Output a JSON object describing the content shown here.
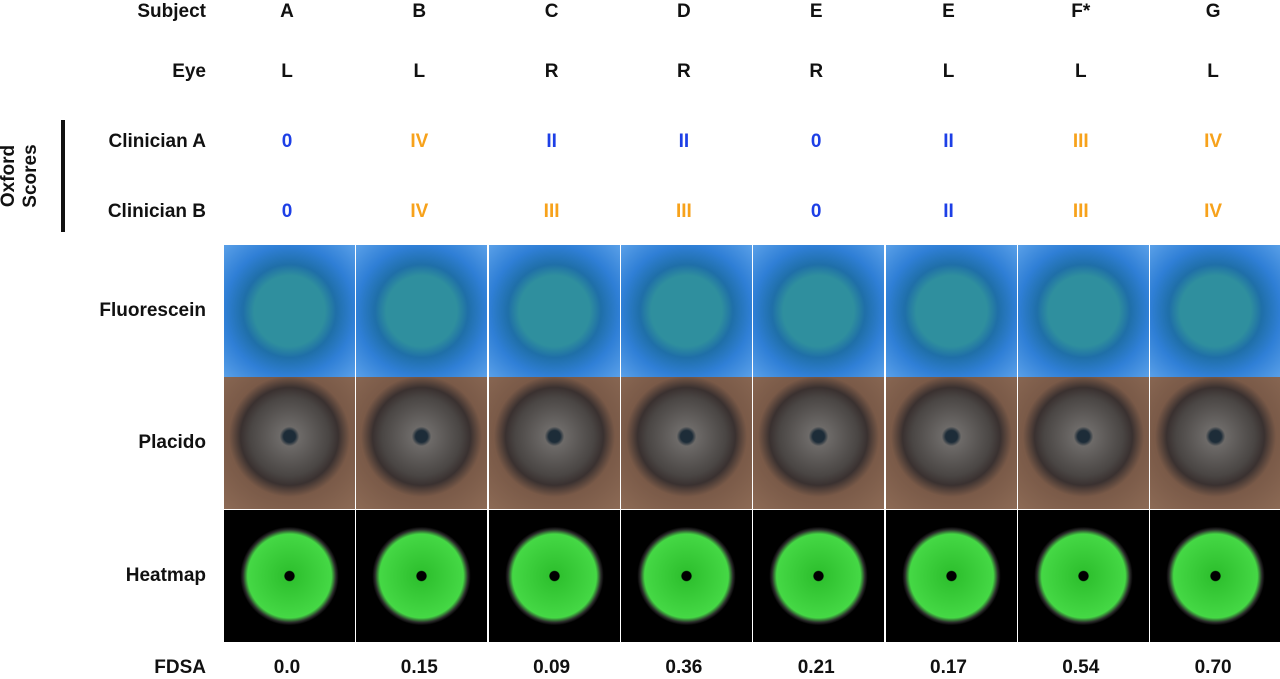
{
  "group_label": [
    "Oxford",
    "Scores"
  ],
  "rows": [
    {
      "label": "Subject",
      "cells": [
        "A",
        "B",
        "C",
        "D",
        "E",
        "E",
        "F*",
        "G"
      ]
    },
    {
      "label": "Eye",
      "cells": [
        "L",
        "L",
        "R",
        "R",
        "R",
        "L",
        "L",
        "L"
      ]
    },
    {
      "label": "Clinician A",
      "cells": [
        "0",
        "IV",
        "II",
        "II",
        "0",
        "II",
        "III",
        "IV"
      ],
      "colors": [
        "#1d3fe6",
        "#f7a21b",
        "#1d3fe6",
        "#1d3fe6",
        "#1d3fe6",
        "#1d3fe6",
        "#f7a21b",
        "#f7a21b"
      ]
    },
    {
      "label": "Clinician B",
      "cells": [
        "0",
        "IV",
        "III",
        "III",
        "0",
        "II",
        "III",
        "IV"
      ],
      "colors": [
        "#1d3fe6",
        "#f7a21b",
        "#f7a21b",
        "#f7a21b",
        "#1d3fe6",
        "#1d3fe6",
        "#f7a21b",
        "#f7a21b"
      ]
    }
  ],
  "image_rows": [
    "Fluorescein",
    "Placido",
    "Heatmap"
  ],
  "fdsa": {
    "label": "FDSA",
    "values": [
      "0.0",
      "0.15",
      "0.09",
      "0.36",
      "0.21",
      "0.17",
      "0.54",
      "0.70"
    ]
  }
}
